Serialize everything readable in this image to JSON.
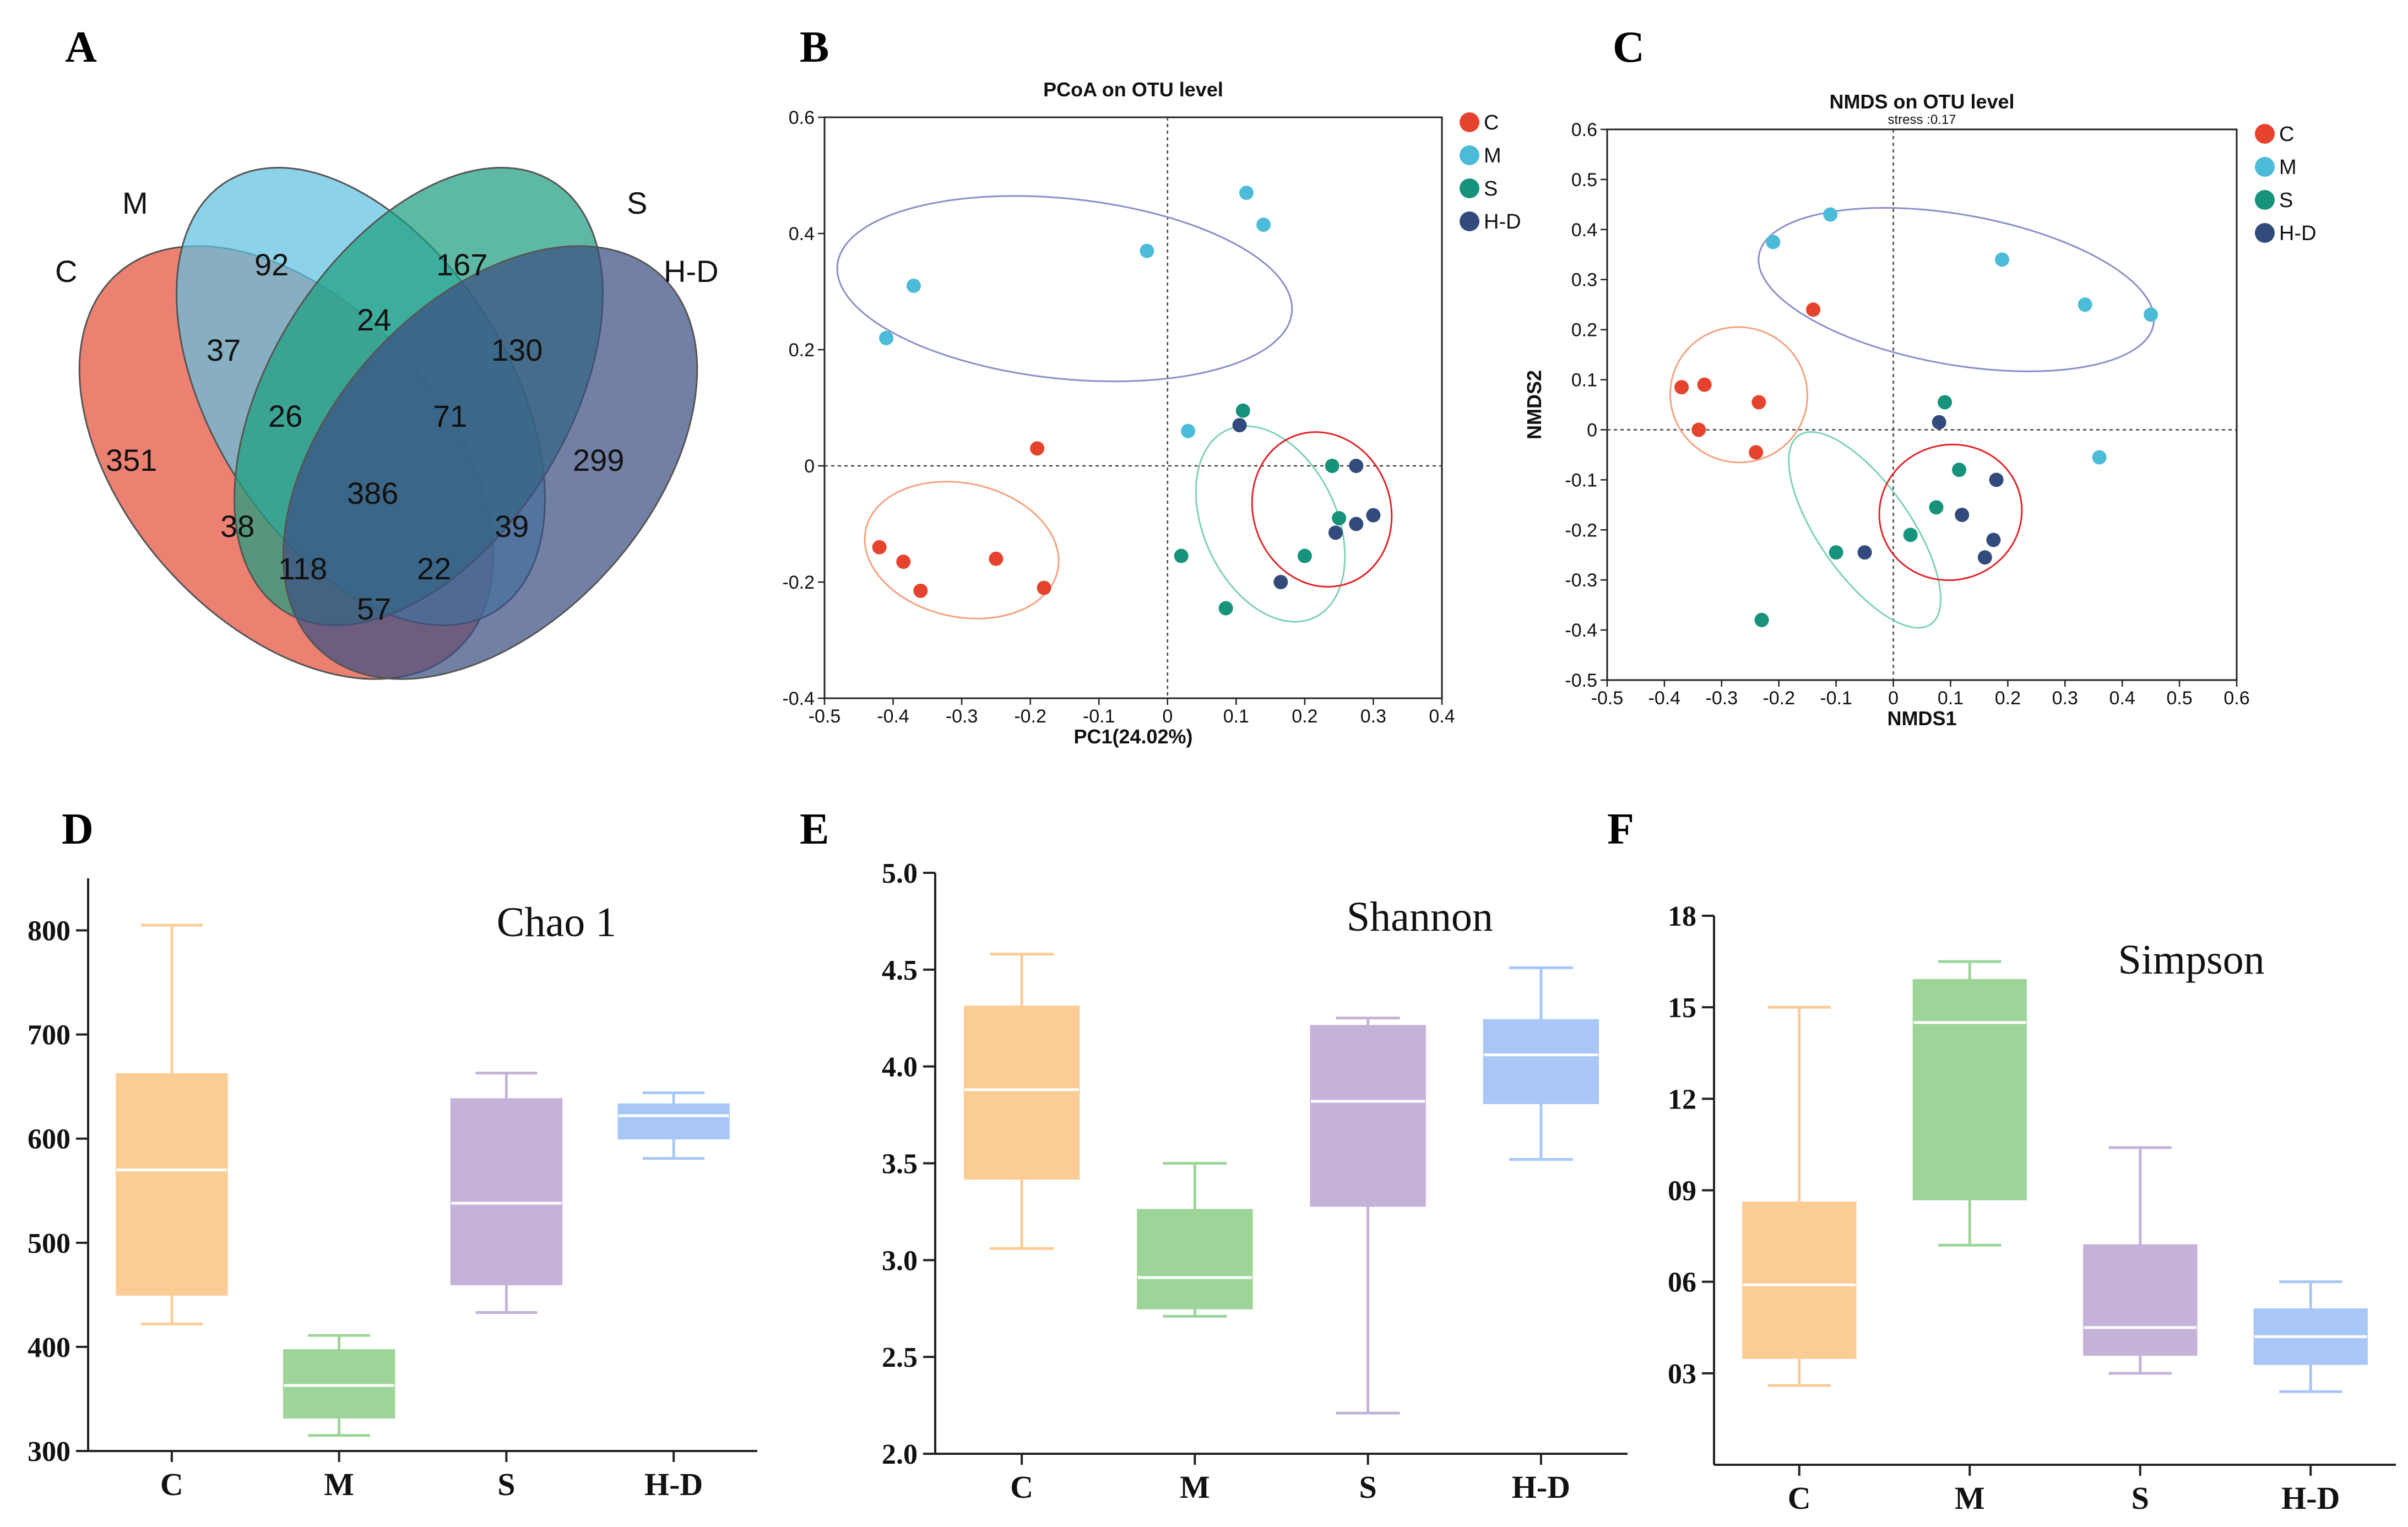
{
  "panels": {
    "A": "A",
    "B": "B",
    "C": "C",
    "D": "D",
    "E": "E",
    "F": "F"
  },
  "venn": {
    "sets": [
      {
        "name": "C",
        "color": "#e5503c"
      },
      {
        "name": "M",
        "color": "#5fc1df"
      },
      {
        "name": "S",
        "color": "#1f9e7f"
      },
      {
        "name": "H-D",
        "color": "#3c4f82"
      }
    ],
    "regions": {
      "C_only": "351",
      "M_only": "92",
      "S_only": "167",
      "HD_only": "299",
      "C_M": "37",
      "M_S": "24",
      "S_HD": "130",
      "C_HD": "57",
      "C_M_S": "26",
      "M_S_HD": "71",
      "C_S_HD": "118",
      "C_M_HD": "22",
      "C_S": "38",
      "M_HD": "39",
      "all": "386"
    }
  },
  "chart_data": [
    {
      "type": "scatter",
      "title": "PCoA on OTU level",
      "xlabel": "PC1(24.02%)",
      "ylabel": "",
      "xlim": [
        -0.5,
        0.4
      ],
      "ylim": [
        -0.4,
        0.6
      ],
      "xticks": [
        -0.5,
        -0.4,
        -0.3,
        -0.2,
        -0.1,
        0,
        0.1,
        0.2,
        0.3,
        0.4
      ],
      "yticks": [
        -0.4,
        -0.2,
        0,
        0.2,
        0.4,
        0.6
      ],
      "legend": "right",
      "series": [
        {
          "name": "C",
          "color": "#e5432e",
          "points": [
            [
              -0.19,
              0.03
            ],
            [
              -0.42,
              -0.14
            ],
            [
              -0.385,
              -0.165
            ],
            [
              -0.36,
              -0.215
            ],
            [
              -0.25,
              -0.16
            ],
            [
              -0.18,
              -0.21
            ]
          ],
          "ellipse": {
            "cx": -0.3,
            "cy": -0.145,
            "rx": 0.143,
            "ry": 0.115,
            "rot": -12,
            "color": "#f4a27f"
          }
        },
        {
          "name": "M",
          "color": "#4cbbd8",
          "points": [
            [
              -0.37,
              0.31
            ],
            [
              -0.41,
              0.22
            ],
            [
              -0.03,
              0.37
            ],
            [
              0.115,
              0.47
            ],
            [
              0.14,
              0.415
            ],
            [
              0.03,
              0.06
            ]
          ],
          "ellipse": {
            "cx": -0.15,
            "cy": 0.305,
            "rx": 0.333,
            "ry": 0.155,
            "rot": -6,
            "color": "#8a8fc9"
          }
        },
        {
          "name": "S",
          "color": "#16937a",
          "points": [
            [
              0.11,
              0.095
            ],
            [
              0.24,
              0
            ],
            [
              0.25,
              -0.09
            ],
            [
              0.02,
              -0.155
            ],
            [
              0.2,
              -0.155
            ],
            [
              0.085,
              -0.245
            ]
          ],
          "ellipse": {
            "cx": 0.15,
            "cy": -0.1,
            "rx": 0.097,
            "ry": 0.178,
            "rot": 25,
            "color": "#7fd3b1"
          }
        },
        {
          "name": "H-D",
          "color": "#334a7c",
          "points": [
            [
              0.105,
              0.07
            ],
            [
              0.275,
              0
            ],
            [
              0.3,
              -0.085
            ],
            [
              0.275,
              -0.1
            ],
            [
              0.245,
              -0.115
            ],
            [
              0.165,
              -0.2
            ]
          ],
          "ellipse": {
            "cx": 0.225,
            "cy": -0.075,
            "rx": 0.1,
            "ry": 0.135,
            "rot": 20,
            "color": "#e1262a"
          }
        }
      ]
    },
    {
      "type": "scatter",
      "title": "NMDS on OTU level",
      "subtitle": "stress :0.17",
      "xlabel": "NMDS1",
      "ylabel": "NMDS2",
      "xlim": [
        -0.5,
        0.6
      ],
      "ylim": [
        -0.5,
        0.6
      ],
      "xticks": [
        -0.5,
        -0.4,
        -0.3,
        -0.2,
        -0.1,
        0,
        0.1,
        0.2,
        0.3,
        0.4,
        0.5,
        0.6
      ],
      "yticks": [
        -0.5,
        -0.4,
        -0.3,
        -0.2,
        -0.1,
        0,
        0.1,
        0.2,
        0.3,
        0.4,
        0.5,
        0.6
      ],
      "legend": "right",
      "series": [
        {
          "name": "C",
          "color": "#e5432e",
          "points": [
            [
              -0.14,
              0.24
            ],
            [
              -0.37,
              0.085
            ],
            [
              -0.33,
              0.09
            ],
            [
              -0.235,
              0.055
            ],
            [
              -0.34,
              0
            ],
            [
              -0.24,
              -0.045
            ]
          ],
          "ellipse": {
            "cx": -0.27,
            "cy": 0.07,
            "rx": 0.12,
            "ry": 0.135,
            "rot": -18,
            "color": "#f4a27f"
          }
        },
        {
          "name": "M",
          "color": "#4cbbd8",
          "points": [
            [
              -0.21,
              0.375
            ],
            [
              -0.11,
              0.43
            ],
            [
              0.19,
              0.34
            ],
            [
              0.335,
              0.25
            ],
            [
              0.45,
              0.23
            ],
            [
              0.36,
              -0.055
            ]
          ],
          "ellipse": {
            "cx": 0.11,
            "cy": 0.28,
            "rx": 0.35,
            "ry": 0.15,
            "rot": -10,
            "color": "#8a8fc9"
          }
        },
        {
          "name": "S",
          "color": "#16937a",
          "points": [
            [
              0.09,
              0.055
            ],
            [
              0.115,
              -0.08
            ],
            [
              0.075,
              -0.155
            ],
            [
              -0.1,
              -0.245
            ],
            [
              0.03,
              -0.21
            ],
            [
              -0.23,
              -0.38
            ]
          ],
          "ellipse": {
            "cx": -0.05,
            "cy": -0.2,
            "rx": 0.08,
            "ry": 0.23,
            "rot": 35,
            "color": "#7fd3b1"
          }
        },
        {
          "name": "H-D",
          "color": "#334a7c",
          "points": [
            [
              0.08,
              0.015
            ],
            [
              0.18,
              -0.1
            ],
            [
              0.12,
              -0.17
            ],
            [
              -0.05,
              -0.245
            ],
            [
              0.175,
              -0.22
            ],
            [
              0.16,
              -0.255
            ]
          ],
          "ellipse": {
            "cx": 0.1,
            "cy": -0.165,
            "rx": 0.125,
            "ry": 0.135,
            "rot": 15,
            "color": "#e1262a"
          }
        }
      ]
    },
    {
      "type": "box",
      "title": "Chao 1",
      "ylim": [
        300,
        850
      ],
      "yticks": [
        300,
        400,
        500,
        600,
        700,
        800
      ],
      "ytick_labels": [
        "300",
        "400",
        "500",
        "600",
        "700",
        "800"
      ],
      "categories": [
        "C",
        "M",
        "S",
        "H-D"
      ],
      "colors": [
        "#fccc95",
        "#9dd599",
        "#c5b2d8",
        "#a8c7f7"
      ],
      "boxes": [
        {
          "min": 422,
          "q1": 450,
          "median": 570,
          "q3": 662,
          "max": 805
        },
        {
          "min": 315,
          "q1": 332,
          "median": 363,
          "q3": 397,
          "max": 411
        },
        {
          "min": 433,
          "q1": 460,
          "median": 538,
          "q3": 638,
          "max": 663
        },
        {
          "min": 581,
          "q1": 600,
          "median": 622,
          "q3": 633,
          "max": 644
        }
      ]
    },
    {
      "type": "box",
      "title": "Shannon",
      "ylim": [
        2.0,
        5.0
      ],
      "yticks": [
        2.0,
        2.5,
        3.0,
        3.5,
        4.0,
        4.5,
        5.0
      ],
      "ytick_labels": [
        "2.0",
        "2.5",
        "3.0",
        "3.5",
        "4.0",
        "4.5",
        "5.0"
      ],
      "categories": [
        "C",
        "M",
        "S",
        "H-D"
      ],
      "colors": [
        "#fccc95",
        "#9dd599",
        "#c5b2d8",
        "#a8c7f7"
      ],
      "boxes": [
        {
          "min": 3.06,
          "q1": 3.42,
          "median": 3.88,
          "q3": 4.31,
          "max": 4.58
        },
        {
          "min": 2.71,
          "q1": 2.75,
          "median": 2.91,
          "q3": 3.26,
          "max": 3.5
        },
        {
          "min": 2.21,
          "q1": 3.28,
          "median": 3.82,
          "q3": 4.21,
          "max": 4.25
        },
        {
          "min": 3.52,
          "q1": 3.81,
          "median": 4.06,
          "q3": 4.24,
          "max": 4.51
        }
      ]
    },
    {
      "type": "box",
      "title": "Simpson",
      "ylim": [
        0.0,
        0.18
      ],
      "yticks": [
        0.03,
        0.06,
        0.09,
        0.12,
        0.15,
        0.18
      ],
      "ytick_labels": [
        "03",
        "06",
        "09",
        "12",
        "15",
        "18"
      ],
      "categories": [
        "C",
        "M",
        "S",
        "H-D"
      ],
      "colors": [
        "#fccc95",
        "#9dd599",
        "#c5b2d8",
        "#a8c7f7"
      ],
      "boxes": [
        {
          "min": 0.026,
          "q1": 0.035,
          "median": 0.059,
          "q3": 0.086,
          "max": 0.15
        },
        {
          "min": 0.072,
          "q1": 0.087,
          "median": 0.145,
          "q3": 0.159,
          "max": 0.165
        },
        {
          "min": 0.03,
          "q1": 0.036,
          "median": 0.045,
          "q3": 0.072,
          "max": 0.104
        },
        {
          "min": 0.024,
          "q1": 0.033,
          "median": 0.042,
          "q3": 0.051,
          "max": 0.06
        }
      ]
    }
  ]
}
